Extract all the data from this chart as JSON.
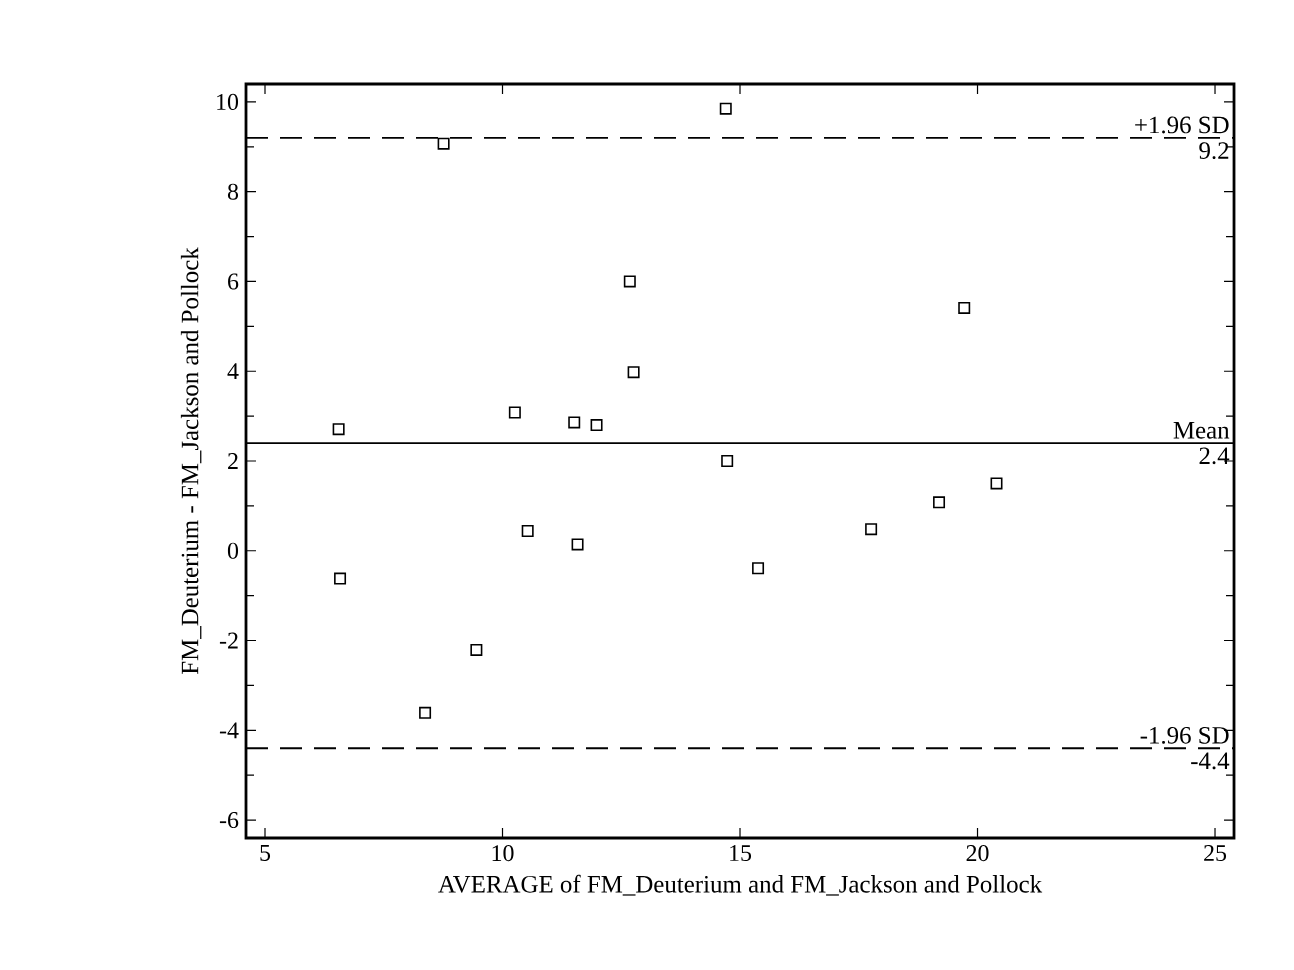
{
  "chart_data": {
    "type": "scatter",
    "xlabel": "AVERAGE of FM_Deuterium and FM_Jackson and Pollock",
    "ylabel": "FM_Deuterium - FM_Jackson and Pollock",
    "xlim": [
      4.6,
      25.4
    ],
    "ylim": [
      -6.4,
      10.4
    ],
    "xticks": [
      5,
      10,
      15,
      20,
      25
    ],
    "yticks": [
      -6,
      -4,
      -2,
      0,
      2,
      4,
      6,
      8,
      10
    ],
    "marker": "square",
    "series": [
      {
        "color": "#000000",
        "x": [
          6.58,
          8.37,
          9.45,
          10.53,
          11.58,
          14.73,
          15.38,
          17.76,
          19.19,
          20.4,
          6.55,
          8.76,
          10.26,
          11.51,
          11.98,
          12.68,
          12.76,
          14.7,
          19.72
        ],
        "values": [
          -0.62,
          -3.61,
          -2.21,
          0.44,
          0.14,
          2.0,
          -0.39,
          0.48,
          1.08,
          1.5,
          2.71,
          9.07,
          3.08,
          2.86,
          2.8,
          6.0,
          3.98,
          9.85,
          5.41
        ]
      }
    ],
    "ref_lines": [
      {
        "axis": "y",
        "value": 9.2,
        "label": "+1.96 SD",
        "color": "#000000",
        "line_style": "dashed"
      },
      {
        "axis": "y",
        "value": 2.4,
        "label": "Mean",
        "color": "#000000",
        "line_style": "solid"
      },
      {
        "axis": "y",
        "value": -4.4,
        "label": "-1.96 SD",
        "color": "#000000",
        "line_style": "dashed"
      }
    ],
    "annotations": [
      {
        "text": "9.2",
        "y": 9.2
      },
      {
        "text": "2.4",
        "y": 2.4
      },
      {
        "text": "-4.4",
        "y": -4.4
      }
    ]
  }
}
